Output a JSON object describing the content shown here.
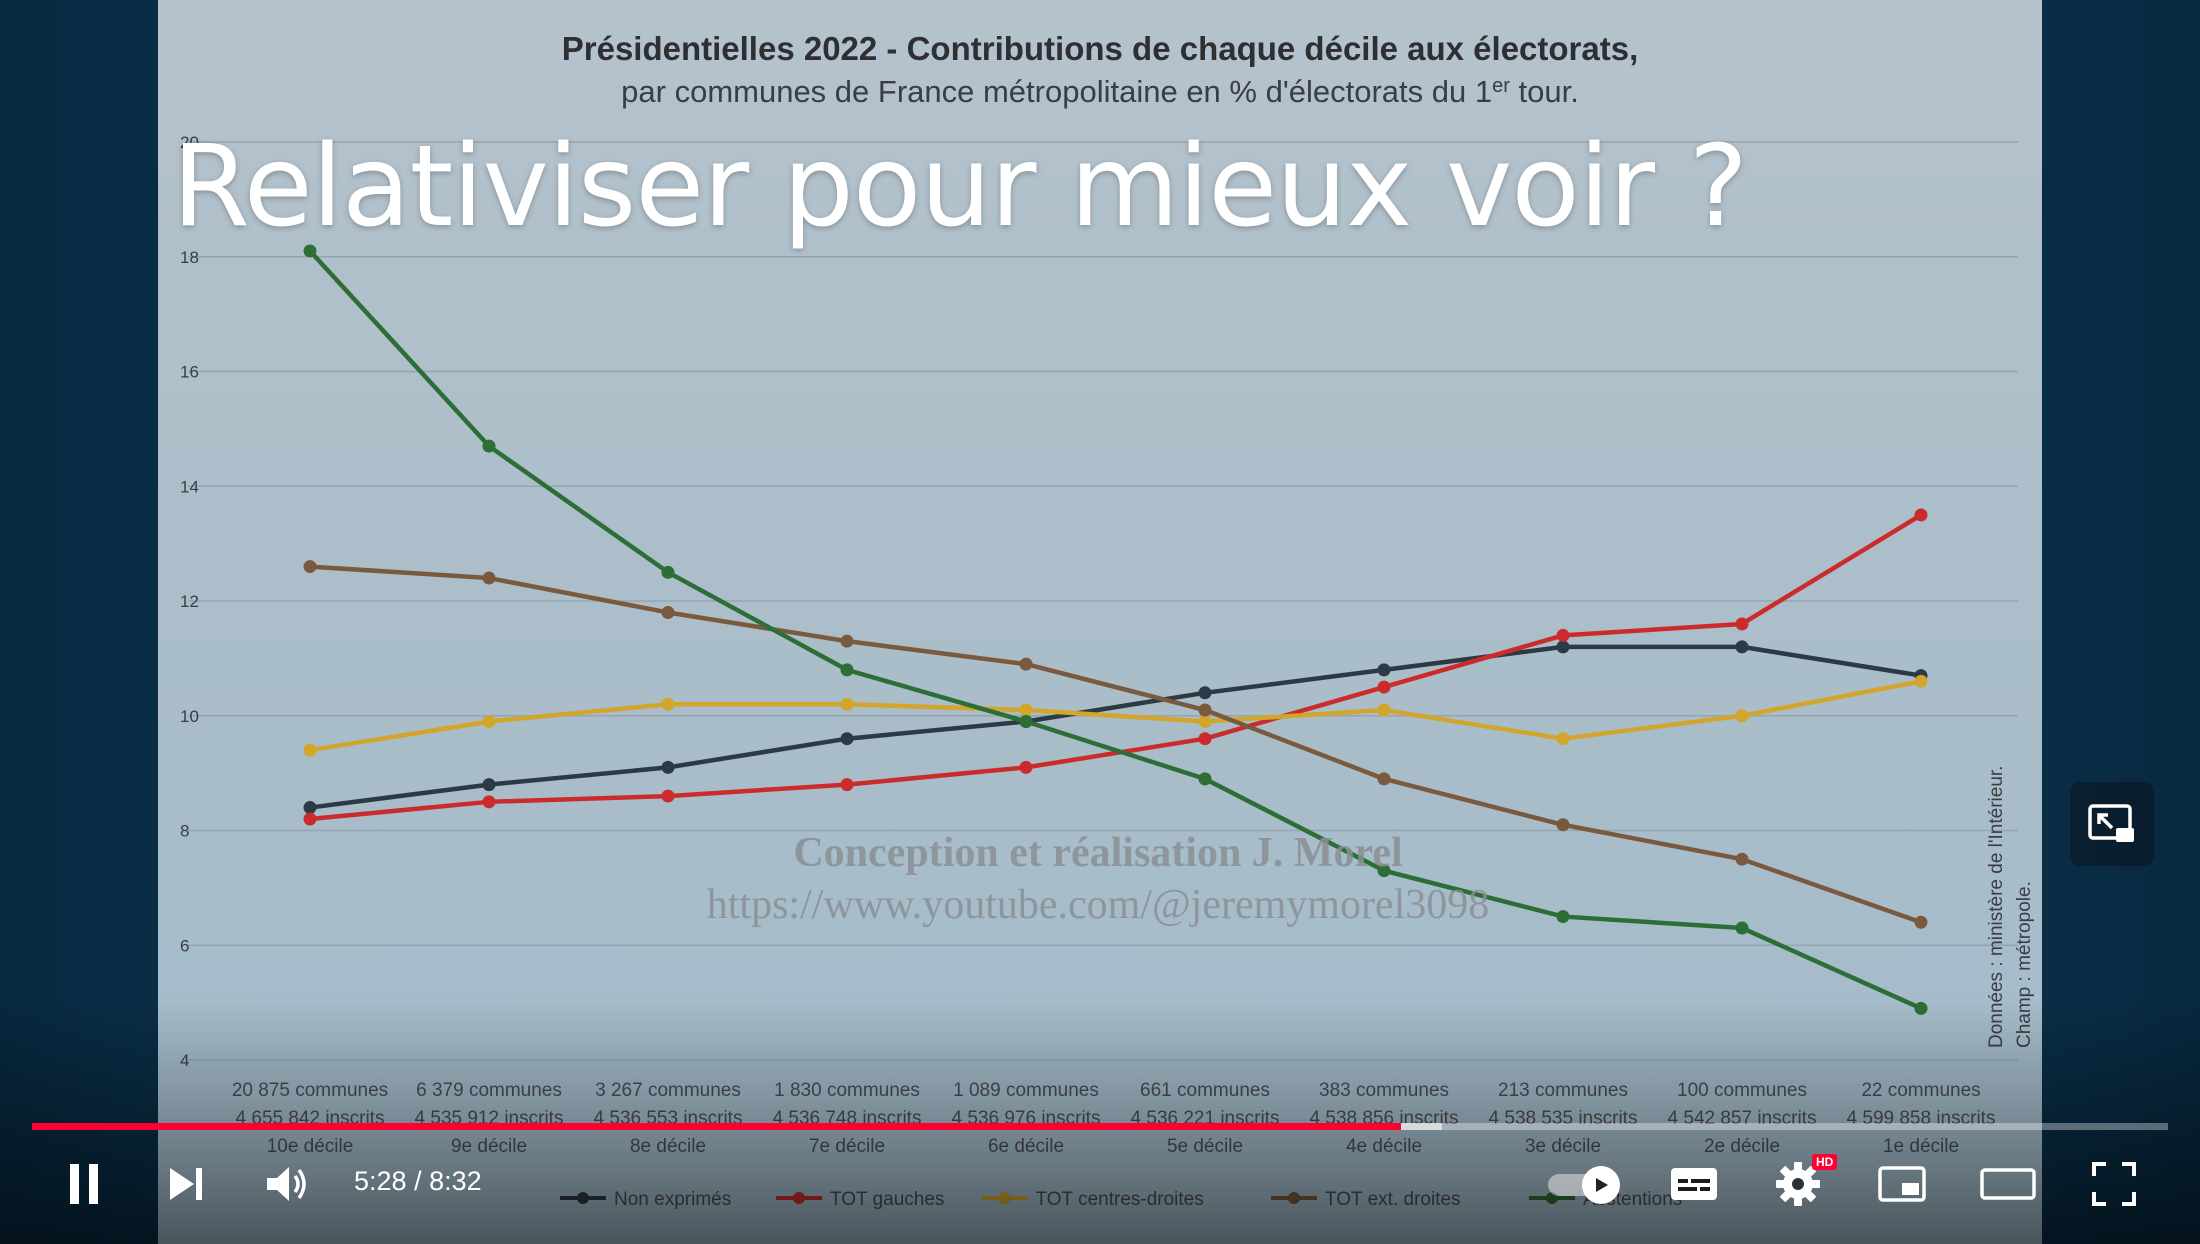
{
  "slide": {
    "chart_title": "Présidentielles 2022 - Contributions de chaque décile aux électorats,",
    "chart_subtitle": "par communes de France métropolitaine en % d'électorats du 1",
    "chart_subtitle_sup": "er",
    "chart_subtitle_end": " tour.",
    "overlay_title": "Relativiser pour mieux voir ?",
    "watermark_line1": "Conception et réalisation J. Morel",
    "watermark_line2": "https://www.youtube.com/@jeremymorel3098",
    "source_line1": "Données : ministère de l'Intérieur.",
    "source_line2": "Champ : métropole."
  },
  "chart_data": {
    "type": "line",
    "title": "Présidentielles 2022 - Contributions de chaque décile aux électorats,",
    "subtitle": "par communes de France métropolitaine en % d'électorats du 1er tour.",
    "ylim": [
      4,
      20
    ],
    "yticks": [
      4,
      6,
      8,
      10,
      12,
      14,
      16,
      18,
      20
    ],
    "grid": true,
    "legend_placement": "bottom",
    "categories": [
      {
        "communes": "20 875 communes",
        "inscrits": "4 655 842 inscrits",
        "decile": "10e décile"
      },
      {
        "communes": "6 379 communes",
        "inscrits": "4 535 912 inscrits",
        "decile": "9e décile"
      },
      {
        "communes": "3 267 communes",
        "inscrits": "4 536 553 inscrits",
        "decile": "8e décile"
      },
      {
        "communes": "1 830 communes",
        "inscrits": "4 536 748 inscrits",
        "decile": "7e décile"
      },
      {
        "communes": "1 089 communes",
        "inscrits": "4 536 976 inscrits",
        "decile": "6e décile"
      },
      {
        "communes": "661 communes",
        "inscrits": "4 536 221 inscrits",
        "decile": "5e décile"
      },
      {
        "communes": "383 communes",
        "inscrits": "4 538 856 inscrits",
        "decile": "4e décile"
      },
      {
        "communes": "213 communes",
        "inscrits": "4 538 535 inscrits",
        "decile": "3e décile"
      },
      {
        "communes": "100 communes",
        "inscrits": "4 542 857 inscrits",
        "decile": "2e décile"
      },
      {
        "communes": "22 communes",
        "inscrits": "4 599 858 inscrits",
        "decile": "1e décile"
      }
    ],
    "series": [
      {
        "name": "Non exprimés",
        "color": "#2c3a45",
        "values": [
          8.4,
          8.8,
          9.1,
          9.6,
          9.9,
          10.4,
          10.8,
          11.2,
          11.2,
          10.7
        ]
      },
      {
        "name": "TOT gauches",
        "color": "#cc2b2b",
        "values": [
          8.2,
          8.5,
          8.6,
          8.8,
          9.1,
          9.6,
          10.5,
          11.4,
          11.6,
          13.5
        ]
      },
      {
        "name": "TOT centres-droites",
        "color": "#d1a62b",
        "values": [
          9.4,
          9.9,
          10.2,
          10.2,
          10.1,
          9.9,
          10.1,
          9.6,
          10.0,
          10.6
        ]
      },
      {
        "name": "TOT ext. droites",
        "color": "#7a5a3e",
        "values": [
          12.6,
          12.4,
          11.8,
          11.3,
          10.9,
          10.1,
          8.9,
          8.1,
          7.5,
          6.4
        ]
      },
      {
        "name": "Abstentions",
        "color": "#2c6e35",
        "values": [
          18.1,
          14.7,
          12.5,
          10.8,
          9.9,
          8.9,
          7.3,
          6.5,
          6.3,
          4.9
        ]
      }
    ]
  },
  "player": {
    "time_current": "5:28",
    "time_separator": " / ",
    "time_total": "8:32",
    "progress_fraction": 0.641,
    "buffer_fraction": 0.66,
    "hd_badge": "HD",
    "icons": {
      "play_pause": "pause-icon",
      "next": "next-icon",
      "volume": "volume-icon",
      "autoplay": "autoplay-icon",
      "subtitles": "subtitles-icon",
      "settings": "gear-icon",
      "miniplayer": "miniplayer-icon",
      "theater": "theater-icon",
      "fullscreen": "fullscreen-icon",
      "pip": "pip-icon"
    }
  }
}
